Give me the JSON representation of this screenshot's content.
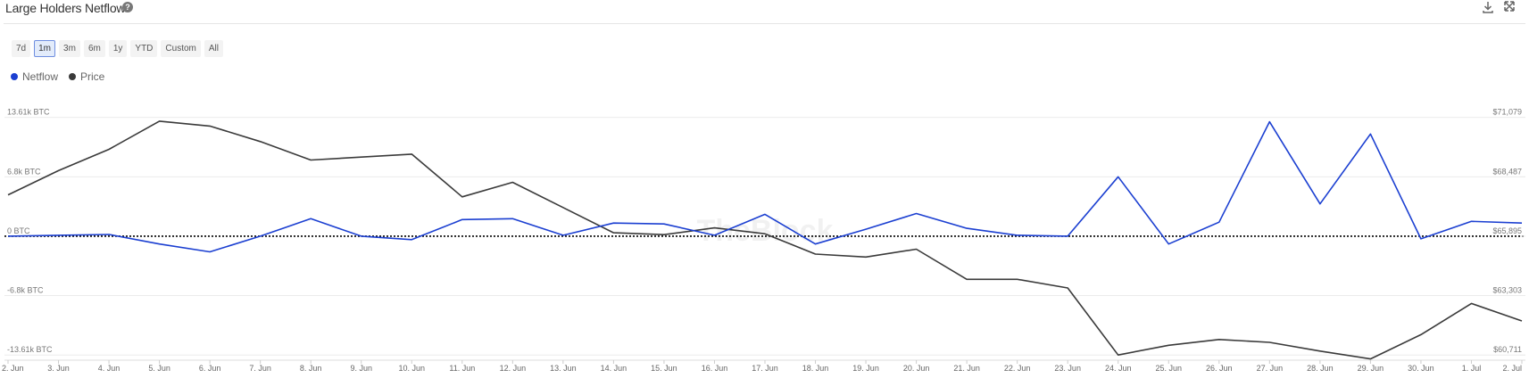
{
  "header": {
    "title": "Large Holders Netflow"
  },
  "range_buttons": [
    "7d",
    "1m",
    "3m",
    "6m",
    "1y",
    "YTD",
    "Custom",
    "All"
  ],
  "selected_range_index": 1,
  "watermark": "TheBlock",
  "chart_data": {
    "type": "line",
    "categories": [
      "2. Jun",
      "3. Jun",
      "4. Jun",
      "5. Jun",
      "6. Jun",
      "7. Jun",
      "8. Jun",
      "9. Jun",
      "10. Jun",
      "11. Jun",
      "12. Jun",
      "13. Jun",
      "14. Jun",
      "15. Jun",
      "16. Jun",
      "17. Jun",
      "18. Jun",
      "19. Jun",
      "20. Jun",
      "21. Jun",
      "22. Jun",
      "23. Jun",
      "24. Jun",
      "25. Jun",
      "26. Jun",
      "27. Jun",
      "28. Jun",
      "29. Jun",
      "30. Jun",
      "1. Jul",
      "2. Jul"
    ],
    "series": [
      {
        "name": "Netflow",
        "color": "#1b3fd1",
        "axis": "y",
        "values": [
          0,
          100,
          200,
          -900,
          -1800,
          0,
          2000,
          0,
          -400,
          1900,
          2000,
          100,
          1500,
          1400,
          100,
          2500,
          -900,
          800,
          2600,
          900,
          100,
          0,
          6800,
          -900,
          1600,
          13100,
          3700,
          11700,
          -300,
          1700,
          1500
        ]
      },
      {
        "name": "Price",
        "color": "#3a3a3a",
        "axis": "y2",
        "values": [
          67695,
          68753,
          69684,
          70910,
          70698,
          70021,
          69218,
          69345,
          69472,
          67610,
          68245,
          67145,
          66045,
          65960,
          66256,
          66002,
          65114,
          64987,
          65326,
          64014,
          64014,
          63635,
          60711,
          61135,
          61389,
          61262,
          60881,
          60542,
          61600,
          62958,
          62196
        ]
      }
    ],
    "ylim": [
      -14200,
      15000
    ],
    "yticks": [
      {
        "value": 13610,
        "label": "13.61k BTC"
      },
      {
        "value": 6800,
        "label": "6.8k BTC"
      },
      {
        "value": 0,
        "label": "0 BTC"
      },
      {
        "value": -6800,
        "label": "-6.8k BTC"
      },
      {
        "value": -13610,
        "label": "-13.61k BTC"
      }
    ],
    "y2lim": [
      60486,
      71608
    ],
    "y2ticks": [
      {
        "value": 71079,
        "label": "$71,079"
      },
      {
        "value": 68487,
        "label": "$68,487"
      },
      {
        "value": 65895,
        "label": "$65,895"
      },
      {
        "value": 63303,
        "label": "$63,303"
      },
      {
        "value": 60711,
        "label": "$60,711"
      }
    ],
    "grid": true,
    "zero_line": "dotted",
    "legend": "top-left"
  }
}
